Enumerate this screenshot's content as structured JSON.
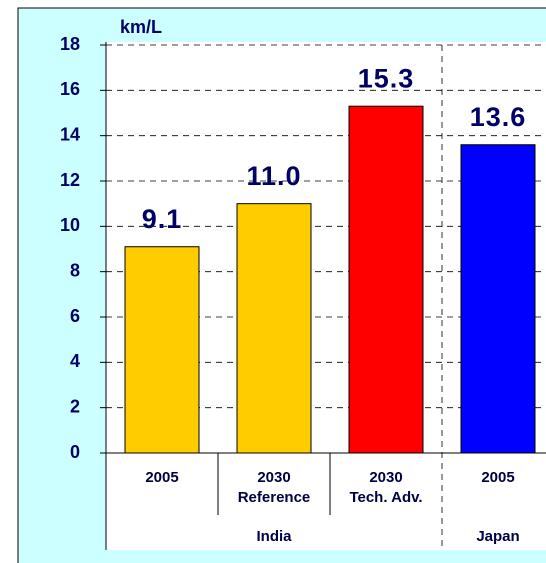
{
  "chart_data": {
    "type": "bar",
    "y_label": "km/L",
    "categories": [
      "2005",
      "2030",
      "2030",
      "2005"
    ],
    "category_sublabels": [
      null,
      "Reference",
      "Tech. Adv.",
      null
    ],
    "groups": [
      "India",
      "India",
      "India",
      "Japan"
    ],
    "values": [
      9.1,
      11.0,
      15.3,
      13.6
    ],
    "value_labels": [
      "9.1",
      "11.0",
      "15.3",
      "13.6"
    ],
    "colors": [
      "#ffcc00",
      "#ffcc00",
      "#ff0000",
      "#0000ff"
    ],
    "ylim": [
      0,
      18
    ],
    "yticks": [
      0,
      2,
      4,
      6,
      8,
      10,
      12,
      14,
      16,
      18
    ],
    "grid": true
  }
}
